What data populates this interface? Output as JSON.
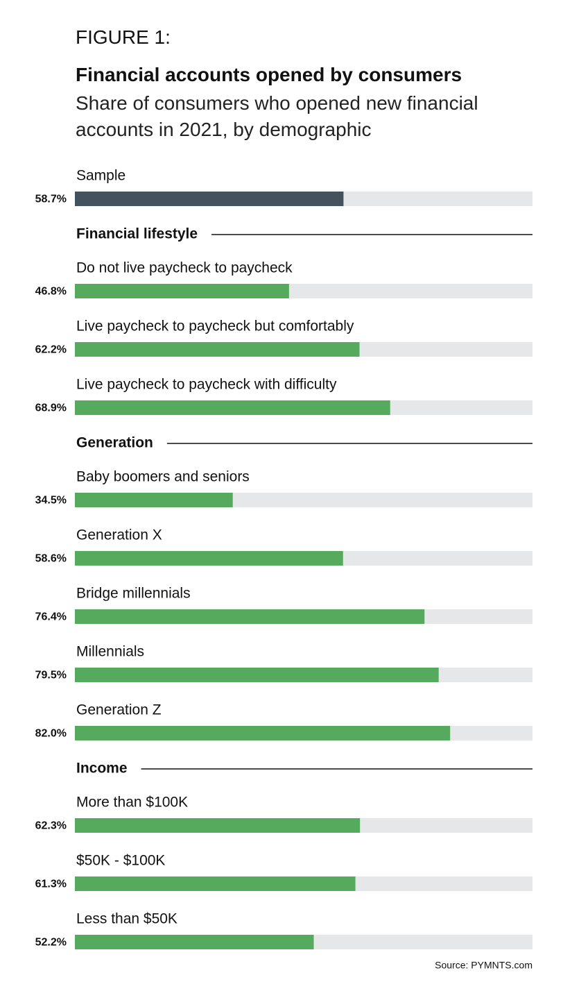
{
  "chart_data": {
    "type": "bar",
    "figure_label": "FIGURE 1:",
    "title": "Financial accounts opened by consumers",
    "subtitle": "Share of consumers who opened new financial accounts in 2021, by demographic",
    "source": "Source: PYMNTS.com",
    "xlim": [
      0,
      100
    ],
    "track_color": "#e6e7e8",
    "groups": [
      {
        "name": null,
        "color": "#44525e",
        "categories": [
          "Sample"
        ],
        "values": [
          58.7
        ],
        "value_labels": [
          "58.7%"
        ]
      },
      {
        "name": "Financial lifestyle",
        "color": "#55aa5e",
        "categories": [
          "Do not live paycheck to paycheck",
          "Live paycheck to paycheck but comfortably",
          "Live paycheck to paycheck with difficulty"
        ],
        "values": [
          46.8,
          62.2,
          68.9
        ],
        "value_labels": [
          "46.8%",
          "62.2%",
          "68.9%"
        ]
      },
      {
        "name": "Generation",
        "color": "#55aa5e",
        "categories": [
          "Baby boomers and seniors",
          "Generation X",
          "Bridge millennials",
          "Millennials",
          "Generation Z"
        ],
        "values": [
          34.5,
          58.6,
          76.4,
          79.5,
          82.0
        ],
        "value_labels": [
          "34.5%",
          "58.6%",
          "76.4%",
          "79.5%",
          "82.0%"
        ]
      },
      {
        "name": "Income",
        "color": "#55aa5e",
        "categories": [
          "More than $100K",
          "$50K - $100K",
          "Less than $50K"
        ],
        "values": [
          62.3,
          61.3,
          52.2
        ],
        "value_labels": [
          "62.3%",
          "61.3%",
          "52.2%"
        ]
      }
    ]
  }
}
